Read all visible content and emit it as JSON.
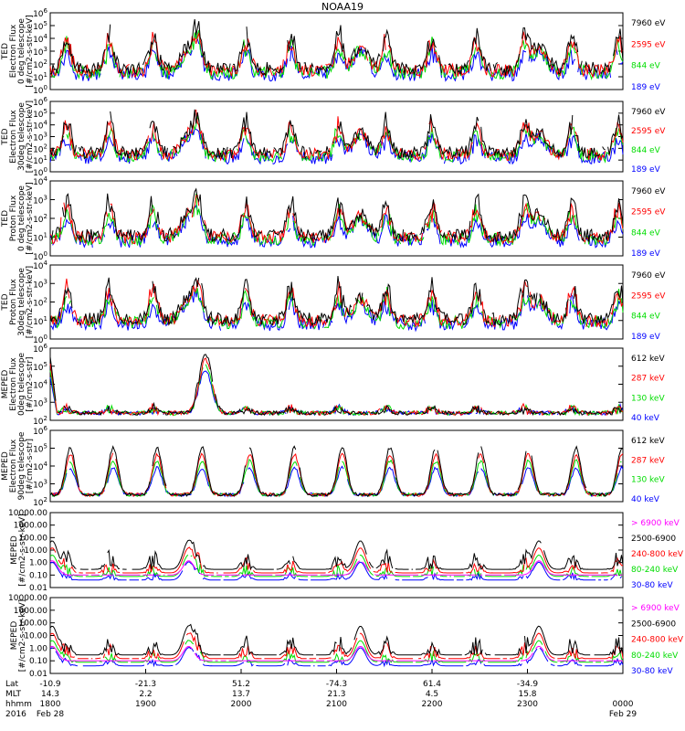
{
  "chart_data": {
    "type": "line",
    "title": "NOAA19",
    "panels": [
      {
        "ylabel": [
          "TED",
          "Electron Flux",
          "0 deg telescope",
          "[#/cm2-s-str-keV]"
        ],
        "yscale": "log",
        "ylim": [
          1,
          1000000
        ],
        "yticks": [
          "10^0",
          "10^1",
          "10^2",
          "10^3",
          "10^4",
          "10^5",
          "10^6"
        ],
        "series": [
          {
            "name": "7960 eV",
            "color": "#000000"
          },
          {
            "name": "2595 eV",
            "color": "#ff0000"
          },
          {
            "name": "844 eV",
            "color": "#00dd00"
          },
          {
            "name": "189 eV",
            "color": "#0000ff"
          }
        ],
        "profile": "ted_e0"
      },
      {
        "ylabel": [
          "TED",
          "Electron Flux",
          "30deg telescope",
          "[#/cm2-s-str-keV]"
        ],
        "yscale": "log",
        "ylim": [
          1,
          1000000
        ],
        "yticks": [
          "10^0",
          "10^1",
          "10^2",
          "10^3",
          "10^4",
          "10^5",
          "10^6"
        ],
        "series": [
          {
            "name": "7960 eV",
            "color": "#000000"
          },
          {
            "name": "2595 eV",
            "color": "#ff0000"
          },
          {
            "name": "844 eV",
            "color": "#00dd00"
          },
          {
            "name": "189 eV",
            "color": "#0000ff"
          }
        ],
        "profile": "ted_e30"
      },
      {
        "ylabel": [
          "TED",
          "Proton Flux",
          "0 deg telescope",
          "[#/cm2-s-str-keV]"
        ],
        "yscale": "log",
        "ylim": [
          1,
          10000
        ],
        "yticks": [
          "10^0",
          "10^1",
          "10^2",
          "10^3",
          "10^4"
        ],
        "series": [
          {
            "name": "7960 eV",
            "color": "#000000"
          },
          {
            "name": "2595 eV",
            "color": "#ff0000"
          },
          {
            "name": "844 eV",
            "color": "#00dd00"
          },
          {
            "name": "189 eV",
            "color": "#0000ff"
          }
        ],
        "profile": "ted_p0"
      },
      {
        "ylabel": [
          "TED",
          "Proton Flux",
          "30deg telescope",
          "[#/cm2-s-str-keV]"
        ],
        "yscale": "log",
        "ylim": [
          1,
          10000
        ],
        "yticks": [
          "10^0",
          "10^1",
          "10^2",
          "10^3",
          "10^4"
        ],
        "series": [
          {
            "name": "7960 eV",
            "color": "#000000"
          },
          {
            "name": "2595 eV",
            "color": "#ff0000"
          },
          {
            "name": "844 eV",
            "color": "#00dd00"
          },
          {
            "name": "189 eV",
            "color": "#0000ff"
          }
        ],
        "profile": "ted_p30"
      },
      {
        "ylabel": [
          "MEPED",
          "Electron Flux",
          "0deg telescope",
          "[#/cm2-s-str]"
        ],
        "yscale": "log",
        "ylim": [
          100,
          1000000
        ],
        "yticks": [
          "10^2",
          "10^3",
          "10^4",
          "10^5",
          "10^6"
        ],
        "series": [
          {
            "name": "612 keV",
            "color": "#000000"
          },
          {
            "name": "287 keV",
            "color": "#ff0000"
          },
          {
            "name": "130 keV",
            "color": "#00dd00"
          },
          {
            "name": "40 keV",
            "color": "#0000ff"
          }
        ],
        "profile": "meped_e0"
      },
      {
        "ylabel": [
          "MEPED",
          "Electron Flux",
          "90deg telescope",
          "[#/cm2-s-str]"
        ],
        "yscale": "log",
        "ylim": [
          100,
          1000000
        ],
        "yticks": [
          "10^2",
          "10^3",
          "10^4",
          "10^5",
          "10^6"
        ],
        "series": [
          {
            "name": "612 keV",
            "color": "#000000"
          },
          {
            "name": "287 keV",
            "color": "#ff0000"
          },
          {
            "name": "130 keV",
            "color": "#00dd00"
          },
          {
            "name": "40 keV",
            "color": "#0000ff"
          }
        ],
        "profile": "meped_e90"
      },
      {
        "ylabel": [
          "MEPED",
          "[#/cm2-s-str-keV]"
        ],
        "yscale": "log",
        "ylim": [
          0.01,
          10000
        ],
        "yticks": [
          "0.01",
          "0.10",
          "1.00",
          "10.00",
          "100.00",
          "1000.00",
          "10000.00"
        ],
        "series": [
          {
            "name": "> 6900 keV",
            "color": "#ff00ff"
          },
          {
            "name": "2500-6900",
            "color": "#000000"
          },
          {
            "name": "240-800 keV",
            "color": "#ff0000"
          },
          {
            "name": "80-240 keV",
            "color": "#00dd00"
          },
          {
            "name": "30-80 keV",
            "color": "#0000ff"
          }
        ],
        "profile": "meped_p0"
      },
      {
        "ylabel": [
          "MEPED",
          "[#/cm2-s-str-keV]"
        ],
        "yscale": "log",
        "ylim": [
          0.01,
          10000
        ],
        "yticks": [
          "0.01",
          "0.10",
          "1.00",
          "10.00",
          "100.00",
          "1000.00",
          "10000.00"
        ],
        "series": [
          {
            "name": "> 6900 keV",
            "color": "#ff00ff"
          },
          {
            "name": "2500-6900",
            "color": "#000000"
          },
          {
            "name": "240-800 keV",
            "color": "#ff0000"
          },
          {
            "name": "80-240 keV",
            "color": "#00dd00"
          },
          {
            "name": "30-80 keV",
            "color": "#0000ff"
          }
        ],
        "profile": "meped_p90"
      }
    ],
    "x_axis": {
      "row_labels": [
        "Lat",
        "MLT",
        "hhmm",
        "2016"
      ],
      "xlim": [
        "18:00",
        "24:00"
      ],
      "ticks": [
        {
          "time": "18:00",
          "lat": "-10.9",
          "mlt": "14.3",
          "hhmm": "1800",
          "date": "Feb 28"
        },
        {
          "time": "19:00",
          "lat": "-21.3",
          "mlt": "2.2",
          "hhmm": "1900",
          "date": ""
        },
        {
          "time": "20:00",
          "lat": "51.2",
          "mlt": "13.7",
          "hhmm": "2000",
          "date": ""
        },
        {
          "time": "21:00",
          "lat": "-74.3",
          "mlt": "21.3",
          "hhmm": "2100",
          "date": ""
        },
        {
          "time": "22:00",
          "lat": "61.4",
          "mlt": "4.5",
          "hhmm": "2200",
          "date": ""
        },
        {
          "time": "23:00",
          "lat": "-34.9",
          "mlt": "15.8",
          "hhmm": "2300",
          "date": ""
        },
        {
          "time": "24:00",
          "lat": "",
          "mlt": "",
          "hhmm": "0000",
          "date": "Feb 29"
        }
      ]
    },
    "grid": false
  }
}
